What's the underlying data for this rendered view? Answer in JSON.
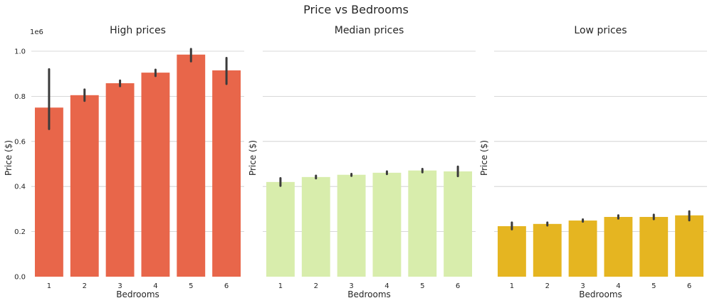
{
  "figure": {
    "title": "Price vs Bedrooms"
  },
  "chart_data": [
    {
      "type": "bar",
      "title": "High prices",
      "xlabel": "Bedrooms",
      "ylabel": "Price ($)",
      "y_offset_label": "1e6",
      "ylim": [
        0,
        1000000
      ],
      "yticks": [
        0,
        200000,
        400000,
        600000,
        800000,
        1000000
      ],
      "ytick_labels": [
        "0.0",
        "0.2",
        "0.4",
        "0.6",
        "0.8",
        "1.0"
      ],
      "show_yticks": true,
      "grid": "horizontal",
      "color": "#e8664a",
      "categories": [
        "1",
        "2",
        "3",
        "4",
        "5",
        "6"
      ],
      "values": [
        750000,
        805000,
        858000,
        905000,
        985000,
        915000
      ],
      "error_bars": [
        [
          655000,
          920000
        ],
        [
          780000,
          830000
        ],
        [
          845000,
          870000
        ],
        [
          890000,
          918000
        ],
        [
          955000,
          1010000
        ],
        [
          855000,
          970000
        ]
      ]
    },
    {
      "type": "bar",
      "title": "Median prices",
      "xlabel": "Bedrooms",
      "ylabel": "Price ($)",
      "ylim": [
        0,
        1000000
      ],
      "yticks": [
        0,
        200000,
        400000,
        600000,
        800000,
        1000000
      ],
      "show_yticks": false,
      "grid": "horizontal",
      "color": "#d8edac",
      "categories": [
        "1",
        "2",
        "3",
        "4",
        "5",
        "6"
      ],
      "values": [
        420000,
        442000,
        452000,
        461000,
        471000,
        467000
      ],
      "error_bars": [
        [
          403000,
          437000
        ],
        [
          436000,
          448000
        ],
        [
          447000,
          456000
        ],
        [
          455000,
          467000
        ],
        [
          463000,
          478000
        ],
        [
          446000,
          488000
        ]
      ]
    },
    {
      "type": "bar",
      "title": "Low prices",
      "xlabel": "Bedrooms",
      "ylabel": "Price ($)",
      "ylim": [
        0,
        1000000
      ],
      "yticks": [
        0,
        200000,
        400000,
        600000,
        800000,
        1000000
      ],
      "show_yticks": false,
      "grid": "horizontal",
      "color": "#e5b521",
      "categories": [
        "1",
        "2",
        "3",
        "4",
        "5",
        "6"
      ],
      "values": [
        224000,
        234000,
        249000,
        265000,
        265000,
        272000
      ],
      "error_bars": [
        [
          210000,
          240000
        ],
        [
          227000,
          240000
        ],
        [
          244000,
          254000
        ],
        [
          258000,
          272000
        ],
        [
          255000,
          275000
        ],
        [
          250000,
          290000
        ]
      ]
    }
  ]
}
